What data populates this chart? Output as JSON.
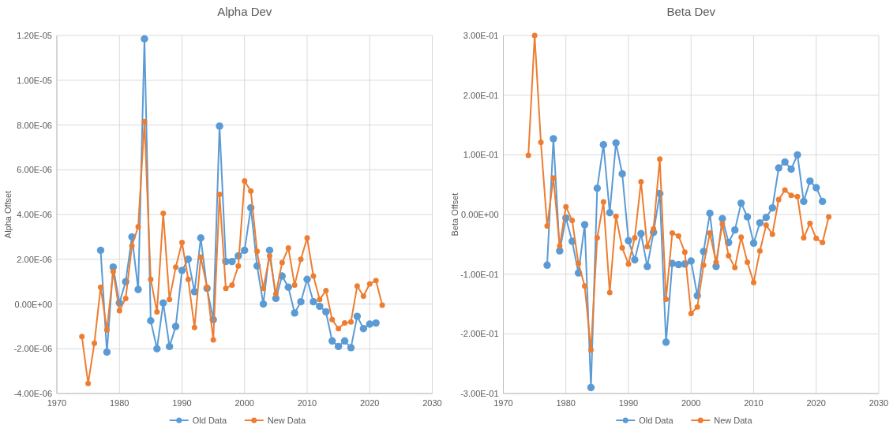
{
  "chart_data": [
    {
      "type": "line",
      "title": "Alpha Dev",
      "ylabel": "Alpha Offset",
      "x": [
        1977,
        1978,
        1979,
        1980,
        1981,
        1982,
        1983,
        1984,
        1985,
        1986,
        1987,
        1988,
        1989,
        1990,
        1991,
        1992,
        1993,
        1994,
        1995,
        1996,
        1997,
        1998,
        1999,
        2000,
        2001,
        2002,
        2003,
        2004,
        2005,
        2006,
        2007,
        2008,
        2009,
        2010,
        2011,
        2012,
        2013,
        2014,
        2015,
        2016,
        2017,
        2018,
        2019,
        2020,
        2021
      ],
      "series": [
        {
          "name": "Old Data",
          "color": "#5b9bd5",
          "values": [
            2.4e-06,
            -2.15e-06,
            1.65e-06,
            5e-08,
            1e-06,
            3e-06,
            6.5e-07,
            1.185e-05,
            -7.5e-07,
            -2e-06,
            5e-08,
            -1.9e-06,
            -1e-06,
            1.5e-06,
            2e-06,
            5.5e-07,
            2.95e-06,
            7e-07,
            -7e-07,
            7.95e-06,
            1.9e-06,
            1.9e-06,
            2.15e-06,
            2.4e-06,
            4.3e-06,
            1.7e-06,
            0.0,
            2.4e-06,
            2.5e-07,
            1.25e-06,
            7.5e-07,
            -4e-07,
            1e-07,
            1.1e-06,
            1e-07,
            -1e-07,
            -3.5e-07,
            -1.65e-06,
            -1.9e-06,
            -1.65e-06,
            -1.95e-06,
            -5.5e-07,
            -1.1e-06,
            -9e-07,
            -8.5e-07
          ]
        },
        {
          "name": "New Data",
          "color": "#ed7d31",
          "x": [
            1974,
            1975,
            1976,
            1977,
            1978,
            1979,
            1980,
            1981,
            1982,
            1983,
            1984,
            1985,
            1986,
            1987,
            1988,
            1989,
            1990,
            1991,
            1992,
            1993,
            1994,
            1995,
            1996,
            1997,
            1998,
            1999,
            2000,
            2001,
            2002,
            2003,
            2004,
            2005,
            2006,
            2007,
            2008,
            2009,
            2010,
            2011,
            2012,
            2013,
            2014,
            2015,
            2016,
            2017,
            2018,
            2019,
            2020,
            2021,
            2022
          ],
          "values": [
            -1.45e-06,
            -3.55e-06,
            -1.75e-06,
            7.5e-07,
            -1.15e-06,
            1.45e-06,
            -3e-07,
            2.5e-07,
            2.6e-06,
            3.45e-06,
            8.15e-06,
            1.1e-06,
            -3.5e-07,
            4.05e-06,
            2e-07,
            1.65e-06,
            2.75e-06,
            1.1e-06,
            -1.05e-06,
            2.1e-06,
            7.5e-07,
            -1.6e-06,
            4.9e-06,
            7e-07,
            8.5e-07,
            1.7e-06,
            5.5e-06,
            5.05e-06,
            2.35e-06,
            7e-07,
            2.15e-06,
            4.5e-07,
            1.85e-06,
            2.5e-06,
            8.5e-07,
            2e-06,
            2.95e-06,
            1.25e-06,
            2e-07,
            6e-07,
            -7e-07,
            -1.1e-06,
            -8.5e-07,
            -8e-07,
            8e-07,
            3.5e-07,
            9e-07,
            1.05e-06,
            -5e-08
          ]
        }
      ],
      "xlim": [
        1970,
        2030
      ],
      "xticks": [
        1970,
        1980,
        1990,
        2000,
        2010,
        2020,
        2030
      ],
      "ylim": [
        -4e-06,
        1.2e-05
      ],
      "yticks": [
        {
          "value": -4e-06,
          "label": "-4.00E-06"
        },
        {
          "value": -2e-06,
          "label": "-2.00E-06"
        },
        {
          "value": 0,
          "label": "0.00E+00"
        },
        {
          "value": 2e-06,
          "label": "2.00E-06"
        },
        {
          "value": 4e-06,
          "label": "4.00E-06"
        },
        {
          "value": 6e-06,
          "label": "6.00E-06"
        },
        {
          "value": 8e-06,
          "label": "8.00E-06"
        },
        {
          "value": 1e-05,
          "label": "1.00E-05"
        },
        {
          "value": 1.2e-05,
          "label": "1.20E-05"
        }
      ],
      "grid": true,
      "legend": "bottom",
      "marker": "circle"
    },
    {
      "type": "line",
      "title": "Beta Dev",
      "ylabel": "Beta Offset",
      "x": [
        1977,
        1978,
        1979,
        1980,
        1981,
        1982,
        1983,
        1984,
        1985,
        1986,
        1987,
        1988,
        1989,
        1990,
        1991,
        1992,
        1993,
        1994,
        1995,
        1996,
        1997,
        1998,
        1999,
        2000,
        2001,
        2002,
        2003,
        2004,
        2005,
        2006,
        2007,
        2008,
        2009,
        2010,
        2011,
        2012,
        2013,
        2014,
        2015,
        2016,
        2017,
        2018,
        2019,
        2020,
        2021
      ],
      "series": [
        {
          "name": "Old Data",
          "color": "#5b9bd5",
          "values": [
            -0.085,
            0.127,
            -0.061,
            -0.006,
            -0.045,
            -0.098,
            -0.017,
            -0.29,
            0.044,
            0.117,
            0.003,
            0.12,
            0.068,
            -0.044,
            -0.076,
            -0.032,
            -0.087,
            -0.03,
            0.035,
            -0.214,
            -0.082,
            -0.084,
            -0.083,
            -0.078,
            -0.136,
            -0.062,
            0.002,
            -0.087,
            -0.007,
            -0.047,
            -0.026,
            0.019,
            -0.004,
            -0.048,
            -0.014,
            -0.005,
            0.011,
            0.078,
            0.088,
            0.076,
            0.1,
            0.022,
            0.056,
            0.045,
            0.022
          ]
        },
        {
          "name": "New Data",
          "color": "#ed7d31",
          "x": [
            1974,
            1975,
            1976,
            1977,
            1978,
            1979,
            1980,
            1981,
            1982,
            1983,
            1984,
            1985,
            1986,
            1987,
            1988,
            1989,
            1990,
            1991,
            1992,
            1993,
            1994,
            1995,
            1996,
            1997,
            1998,
            1999,
            2000,
            2001,
            2002,
            2003,
            2004,
            2005,
            2006,
            2007,
            2008,
            2009,
            2010,
            2011,
            2012,
            2013,
            2014,
            2015,
            2016,
            2017,
            2018,
            2019,
            2020,
            2021,
            2022
          ],
          "values": [
            0.099,
            0.3,
            0.121,
            -0.019,
            0.061,
            -0.053,
            0.013,
            -0.01,
            -0.082,
            -0.12,
            -0.227,
            -0.039,
            0.021,
            -0.131,
            -0.003,
            -0.056,
            -0.083,
            -0.039,
            0.055,
            -0.054,
            -0.024,
            0.093,
            -0.142,
            -0.031,
            -0.036,
            -0.063,
            -0.166,
            -0.155,
            -0.085,
            -0.031,
            -0.08,
            -0.016,
            -0.069,
            -0.089,
            -0.038,
            -0.08,
            -0.114,
            -0.061,
            -0.018,
            -0.033,
            0.025,
            0.041,
            0.032,
            0.03,
            -0.039,
            -0.015,
            -0.04,
            -0.047,
            -0.004
          ]
        }
      ],
      "xlim": [
        1970,
        2030
      ],
      "xticks": [
        1970,
        1980,
        1990,
        2000,
        2010,
        2020,
        2030
      ],
      "ylim": [
        -0.3,
        0.3
      ],
      "yticks": [
        {
          "value": -0.3,
          "label": "-3.00E-01"
        },
        {
          "value": -0.2,
          "label": "-2.00E-01"
        },
        {
          "value": -0.1,
          "label": "-1.00E-01"
        },
        {
          "value": 0,
          "label": "0.00E+00"
        },
        {
          "value": 0.1,
          "label": "1.00E-01"
        },
        {
          "value": 0.2,
          "label": "2.00E-01"
        },
        {
          "value": 0.3,
          "label": "3.00E-01"
        }
      ],
      "grid": true,
      "legend": "bottom",
      "marker": "circle"
    }
  ]
}
